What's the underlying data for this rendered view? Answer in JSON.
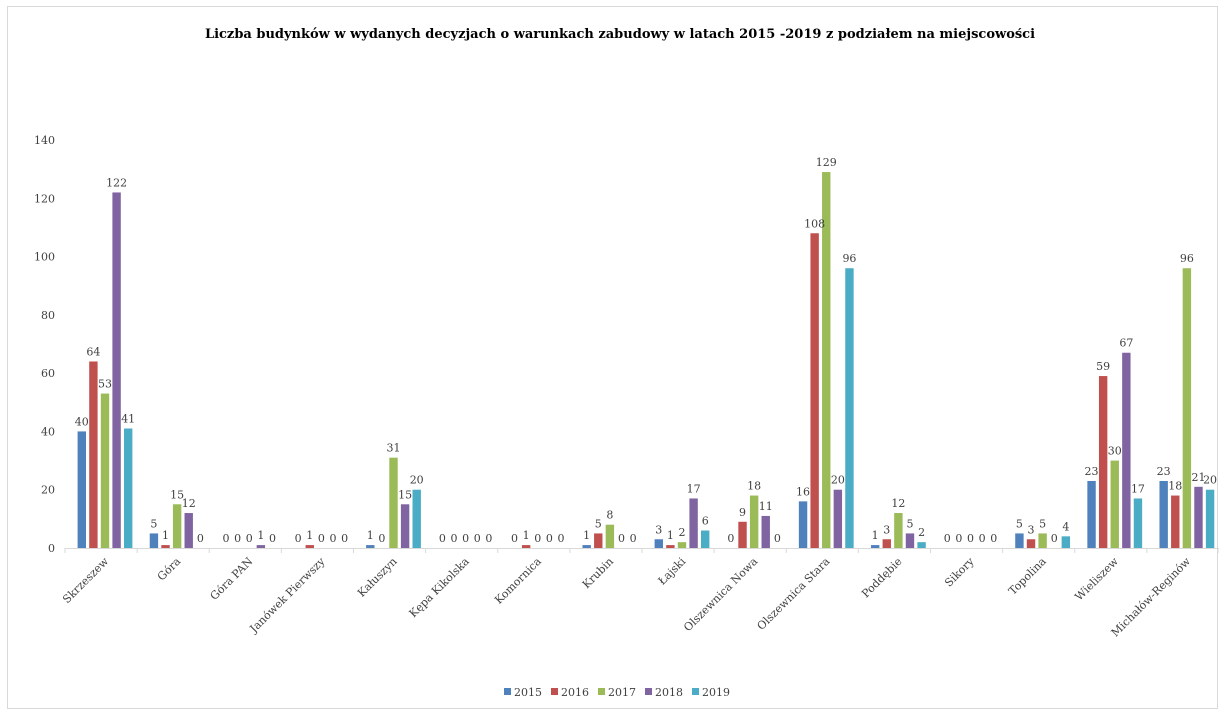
{
  "chart_data": {
    "type": "bar",
    "title": "Liczba budynków w wydanych decyzjach o warunkach zabudowy w latach 2015 -2019 z podziałem na miejscowości",
    "xlabel": "",
    "ylabel": "",
    "ylim": [
      0,
      140
    ],
    "yticks": [
      0,
      20,
      40,
      60,
      80,
      100,
      120,
      140
    ],
    "grid": false,
    "legend_position": "bottom",
    "categories": [
      "Skrzeszew",
      "Góra",
      "Góra PAN",
      "Janówek Pierwszy",
      "Kałuszyn",
      "Kępa Kikolska",
      "Komornica",
      "Krubin",
      "Łajski",
      "Olszewnica Nowa",
      "Olszewnica Stara",
      "Poddębie",
      "Sikory",
      "Topolina",
      "Wieliszew",
      "Michałów-Reginów"
    ],
    "series": [
      {
        "name": "2015",
        "color": "#4f81bd",
        "values": [
          40,
          5,
          0,
          0,
          1,
          0,
          0,
          1,
          3,
          0,
          16,
          1,
          0,
          5,
          23,
          23
        ]
      },
      {
        "name": "2016",
        "color": "#c0504d",
        "values": [
          64,
          1,
          0,
          1,
          0,
          0,
          1,
          5,
          1,
          9,
          108,
          3,
          0,
          3,
          59,
          18
        ]
      },
      {
        "name": "2017",
        "color": "#9bbb59",
        "values": [
          53,
          15,
          0,
          0,
          31,
          0,
          0,
          8,
          2,
          18,
          129,
          12,
          0,
          5,
          30,
          96
        ]
      },
      {
        "name": "2018",
        "color": "#8064a2",
        "values": [
          122,
          12,
          1,
          0,
          15,
          0,
          0,
          0,
          17,
          11,
          20,
          5,
          0,
          0,
          67,
          21
        ]
      },
      {
        "name": "2019",
        "color": "#4bacc6",
        "values": [
          41,
          0,
          0,
          0,
          20,
          0,
          0,
          0,
          6,
          0,
          96,
          2,
          0,
          4,
          17,
          20
        ]
      }
    ]
  }
}
